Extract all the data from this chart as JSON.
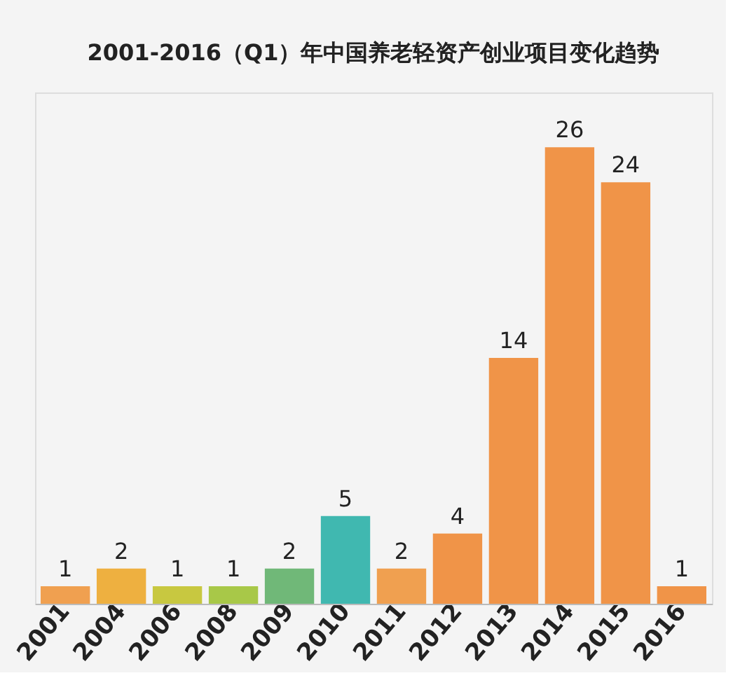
{
  "chart_data": {
    "type": "bar",
    "title": "2001-2016（Q1）年中国养老轻资产创业项目变化趋势",
    "categories": [
      "2001",
      "2004",
      "2006",
      "2008",
      "2009",
      "2010",
      "2011",
      "2012",
      "2013",
      "2014",
      "2015",
      "2016"
    ],
    "values": [
      1,
      2,
      1,
      1,
      2,
      5,
      2,
      4,
      14,
      26,
      24,
      1
    ],
    "colors": [
      "#f0a050",
      "#eeb040",
      "#c8c840",
      "#a8c848",
      "#70b878",
      "#40b8b0",
      "#f0a050",
      "#f09448",
      "#f09448",
      "#f09448",
      "#f09448",
      "#f09448"
    ],
    "data_labels": true
  }
}
